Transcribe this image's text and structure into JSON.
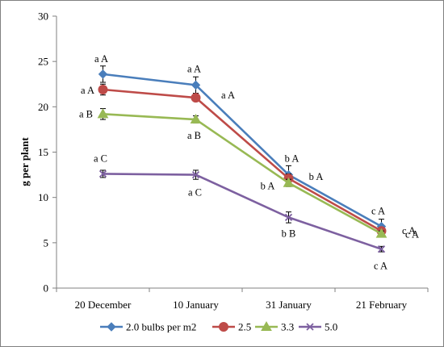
{
  "chart_data": {
    "type": "line",
    "categories": [
      "20 December",
      "10 January",
      "31 January",
      "21 February"
    ],
    "ylabel": "g per plant",
    "xlabel": "",
    "ylim": [
      0,
      30
    ],
    "yticks": [
      0,
      5,
      10,
      15,
      20,
      25,
      30
    ],
    "grid": false,
    "legend_position": "bottom",
    "series": [
      {
        "name": "2.0 bulbs per m2",
        "color": "#4a7ebb",
        "marker": "diamond",
        "values": [
          23.6,
          22.4,
          12.5,
          6.8
        ],
        "errors": [
          0.9,
          0.9,
          1.0,
          0.8
        ],
        "labels": [
          "a  A",
          "a  A",
          "b  A",
          "c  A"
        ]
      },
      {
        "name": "2.5",
        "color": "#be4b48",
        "marker": "circle",
        "values": [
          21.9,
          21.0,
          12.1,
          6.3
        ],
        "errors": [
          0.6,
          0.3,
          0.5,
          0.4
        ],
        "labels": [
          "a  A",
          "a  A",
          "b  A",
          "c  A"
        ]
      },
      {
        "name": "3.3",
        "color": "#98b954",
        "marker": "triangle",
        "values": [
          19.2,
          18.6,
          11.6,
          6.0
        ],
        "errors": [
          0.6,
          0.4,
          0.4,
          0.3
        ],
        "labels": [
          "a  B",
          "a  B",
          "b  A",
          "c  A"
        ]
      },
      {
        "name": "5.0",
        "color": "#7d60a0",
        "marker": "x",
        "values": [
          12.6,
          12.5,
          7.8,
          4.3
        ],
        "errors": [
          0.4,
          0.5,
          0.6,
          0.3
        ],
        "labels": [
          "a  C",
          "a  C",
          "b  B",
          "c  A"
        ]
      }
    ]
  }
}
